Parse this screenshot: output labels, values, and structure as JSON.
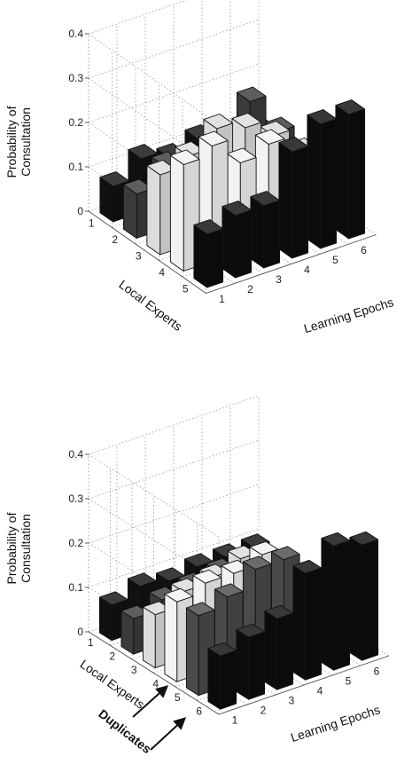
{
  "chart_data": [
    {
      "type": "bar3d",
      "title": "",
      "zlabel_lines": [
        "Probability of",
        "Consultation"
      ],
      "xlabel": "Local Experts",
      "ylabel": "Learning Epochs",
      "zticks": [
        "0",
        "0.1",
        "0.2",
        "0.3",
        "0.4"
      ],
      "zlim": [
        0,
        0.4
      ],
      "expert_ticks": [
        "1",
        "2",
        "3",
        "4",
        "5"
      ],
      "epoch_ticks": [
        "1",
        "2",
        "3",
        "4",
        "5",
        "6"
      ],
      "grid": true,
      "colors_by_expert": [
        "#111111",
        "#3b3b3b",
        "#dcdcdc",
        "#f2f2f2",
        "#0c0c0c"
      ],
      "values": [
        [
          0.08,
          0.12,
          0.1,
          0.12,
          0.1,
          0.1
        ],
        [
          0.1,
          0.14,
          0.13,
          0.15,
          0.22,
          0.13
        ],
        [
          0.18,
          0.2,
          0.24,
          0.22,
          0.18,
          0.12
        ],
        [
          0.24,
          0.26,
          0.2,
          0.22,
          0.16,
          0.14
        ],
        [
          0.12,
          0.14,
          0.14,
          0.24,
          0.28,
          0.28
        ]
      ]
    },
    {
      "type": "bar3d",
      "title": "",
      "zlabel_lines": [
        "Probability of",
        "Consultation"
      ],
      "xlabel": "Local Experts",
      "ylabel": "Learning Epochs",
      "zticks": [
        "0",
        "0.1",
        "0.2",
        "0.3",
        "0.4"
      ],
      "zlim": [
        0,
        0.4
      ],
      "expert_ticks": [
        "1",
        "2",
        "3",
        "4",
        "5",
        "6"
      ],
      "epoch_ticks": [
        "1",
        "2",
        "3",
        "4",
        "5",
        "6"
      ],
      "grid": true,
      "colors_by_expert": [
        "#111111",
        "#3b3b3b",
        "#dcdcdc",
        "#f2f2f2",
        "#4a4a4a",
        "#0c0c0c"
      ],
      "values": [
        [
          0.08,
          0.1,
          0.09,
          0.1,
          0.1,
          0.1
        ],
        [
          0.08,
          0.1,
          0.11,
          0.12,
          0.12,
          0.08
        ],
        [
          0.12,
          0.15,
          0.16,
          0.18,
          0.1,
          0.06
        ],
        [
          0.18,
          0.2,
          0.2,
          0.22,
          0.14,
          0.06
        ],
        [
          0.18,
          0.2,
          0.24,
          0.24,
          0.16,
          0.08
        ],
        [
          0.12,
          0.14,
          0.16,
          0.24,
          0.28,
          0.26
        ]
      ],
      "annotation": {
        "text": "Duplicates",
        "points_to_experts": [
          "5",
          "6"
        ]
      }
    }
  ]
}
